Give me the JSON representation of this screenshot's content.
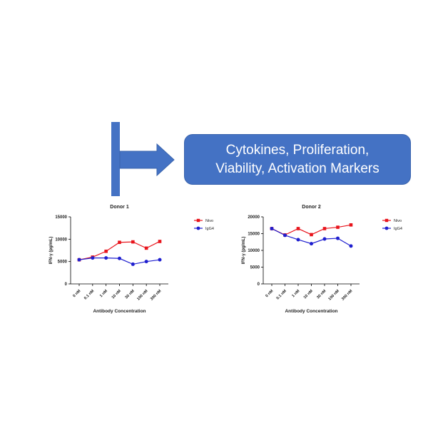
{
  "banner": {
    "line1": "Cytokines, Proliferation,",
    "line2": "Viability, Activation Markers"
  },
  "colors": {
    "accent": "#4472c4",
    "nivo": "#e8141c",
    "igg4": "#1f1fcf"
  },
  "chart_data": [
    {
      "type": "line",
      "title": "Donor 1",
      "xlabel": "Antibody Concentration",
      "ylabel": "IFN-γ (pg/mL)",
      "categories": [
        "0 nM",
        "0.1 nM",
        "1 nM",
        "10 nM",
        "30 nM",
        "100 nM",
        "300 nM"
      ],
      "ylim": [
        0,
        15000
      ],
      "yticks": [
        "0",
        "5000",
        "10000",
        "15000"
      ],
      "legend": "top-right",
      "series": [
        {
          "name": "Nivo",
          "values": [
            5400,
            6000,
            7300,
            9300,
            9400,
            8000,
            9500
          ]
        },
        {
          "name": "IgG4",
          "values": [
            5400,
            5800,
            5800,
            5700,
            4400,
            5000,
            5400
          ]
        }
      ]
    },
    {
      "type": "line",
      "title": "Donor 2",
      "xlabel": "Antibody Concentration",
      "ylabel": "IFN-γ (pg/mL)",
      "categories": [
        "0 nM",
        "0.1 nM",
        "1 nM",
        "10 nM",
        "30 nM",
        "100 nM",
        "300 nM"
      ],
      "ylim": [
        0,
        20000
      ],
      "yticks": [
        "0",
        "5000",
        "10000",
        "15000",
        "20000"
      ],
      "legend": "top-right",
      "series": [
        {
          "name": "Nivo",
          "values": [
            16500,
            14600,
            16500,
            14700,
            16500,
            16900,
            17600
          ]
        },
        {
          "name": "IgG4",
          "values": [
            16500,
            14500,
            13200,
            12000,
            13400,
            13600,
            11300
          ]
        }
      ]
    }
  ]
}
